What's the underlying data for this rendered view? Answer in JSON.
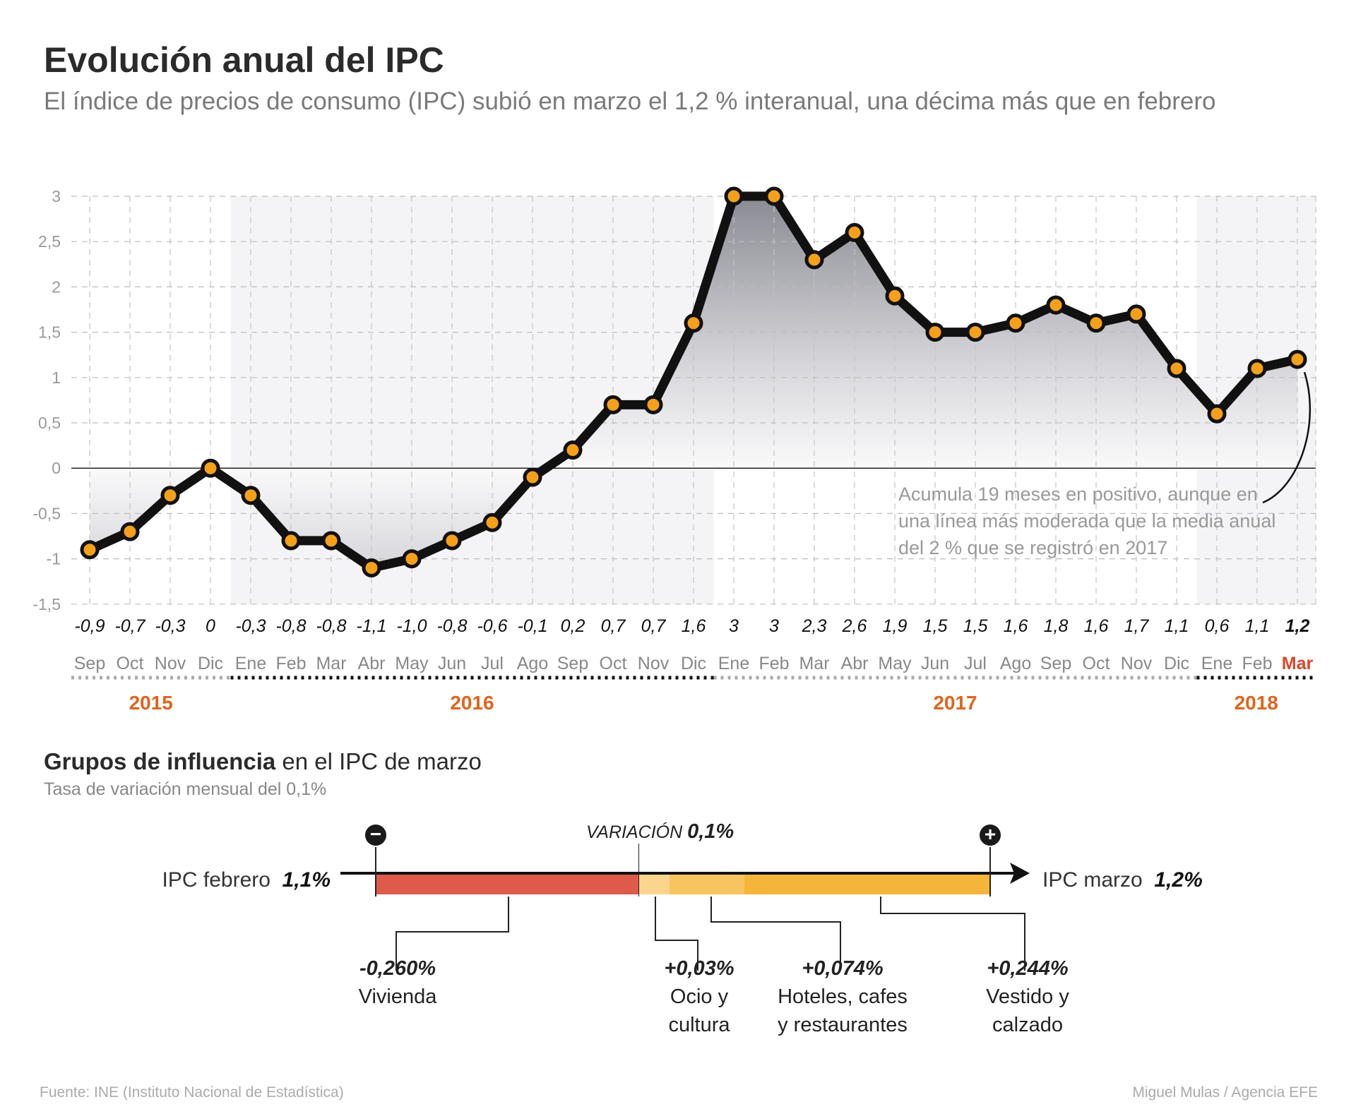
{
  "header": {
    "title": "Evolución anual del IPC",
    "subtitle": "El índice de precios de consumo (IPC) subió en marzo el 1,2 % interanual, una décima más que en febrero"
  },
  "chart_data": {
    "type": "line",
    "title": "Evolución anual del IPC",
    "x": [
      "Sep",
      "Oct",
      "Nov",
      "Dic",
      "Ene",
      "Feb",
      "Mar",
      "Abr",
      "May",
      "Jun",
      "Jul",
      "Ago",
      "Sep",
      "Oct",
      "Nov",
      "Dic",
      "Ene",
      "Feb",
      "Mar",
      "Abr",
      "May",
      "Jun",
      "Jul",
      "Ago",
      "Sep",
      "Oct",
      "Nov",
      "Dic",
      "Ene",
      "Feb",
      "Mar"
    ],
    "values": [
      -0.9,
      -0.7,
      -0.3,
      0,
      -0.3,
      -0.8,
      -0.8,
      -1.1,
      -1.0,
      -0.8,
      -0.6,
      -0.1,
      0.2,
      0.7,
      0.7,
      1.6,
      3,
      3,
      2.3,
      2.6,
      1.9,
      1.5,
      1.5,
      1.6,
      1.8,
      1.6,
      1.7,
      1.1,
      0.6,
      1.1,
      1.2
    ],
    "value_labels": [
      "-0,9",
      "-0,7",
      "-0,3",
      "0",
      "-0,3",
      "-0,8",
      "-0,8",
      "-1,1",
      "-1,0",
      "-0,8",
      "-0,6",
      "-0,1",
      "0,2",
      "0,7",
      "0,7",
      "1,6",
      "3",
      "3",
      "2,3",
      "2,6",
      "1,9",
      "1,5",
      "1,5",
      "1,6",
      "1,8",
      "1,6",
      "1,7",
      "1,1",
      "0,6",
      "1,1",
      "1,2"
    ],
    "years": [
      {
        "label": "2015",
        "start": 0,
        "end": 3
      },
      {
        "label": "2016",
        "start": 4,
        "end": 15
      },
      {
        "label": "2017",
        "start": 16,
        "end": 27
      },
      {
        "label": "2018",
        "start": 28,
        "end": 30
      }
    ],
    "yticks": [
      3,
      2.5,
      2,
      1.5,
      1,
      0.5,
      0,
      -0.5,
      -1,
      -1.5
    ],
    "ytick_labels": [
      "3",
      "2,5",
      "2",
      "1,5",
      "1",
      "0,5",
      "0",
      "-0,5",
      "-1",
      "-1,5"
    ],
    "ylim": [
      -1.5,
      3
    ],
    "grid": true,
    "annotation": [
      "Acumula 19 meses en positivo, aunque en",
      "una línea más moderada que la media anual",
      "del 2 % que se registró en 2017"
    ],
    "colors": {
      "line": "#111111",
      "marker": "#f5a01a",
      "year": "#e0641e",
      "highlight": "#d9452b"
    }
  },
  "influence": {
    "title_bold": "Grupos de influencia",
    "title_rest": " en el IPC de marzo",
    "subtitle": "Tasa de variación mensual del 0,1%",
    "start_label": "IPC febrero",
    "start_value": "1,1%",
    "end_label": "IPC marzo",
    "end_value": "1,2%",
    "variation_label": "VARIACIÓN",
    "variation_value": "0,1%",
    "minus_icon": "−",
    "plus_icon": "+",
    "groups": [
      {
        "value": "-0,260%",
        "lines": [
          "Vivienda"
        ],
        "color": "#de5a4b"
      },
      {
        "value": "+0,03%",
        "lines": [
          "Ocio y",
          "cultura"
        ],
        "color": "#fbd58d"
      },
      {
        "value": "+0,074%",
        "lines": [
          "Hoteles, cafes",
          "y restaurantes"
        ],
        "color": "#f7c462"
      },
      {
        "value": "+0,244%",
        "lines": [
          "Vestido y",
          "calzado"
        ],
        "color": "#f5b53a"
      }
    ]
  },
  "footer": {
    "source": "Fuente: INE (Instituto Nacional de Estadística)",
    "credit": "Miguel Mulas / Agencia EFE"
  }
}
